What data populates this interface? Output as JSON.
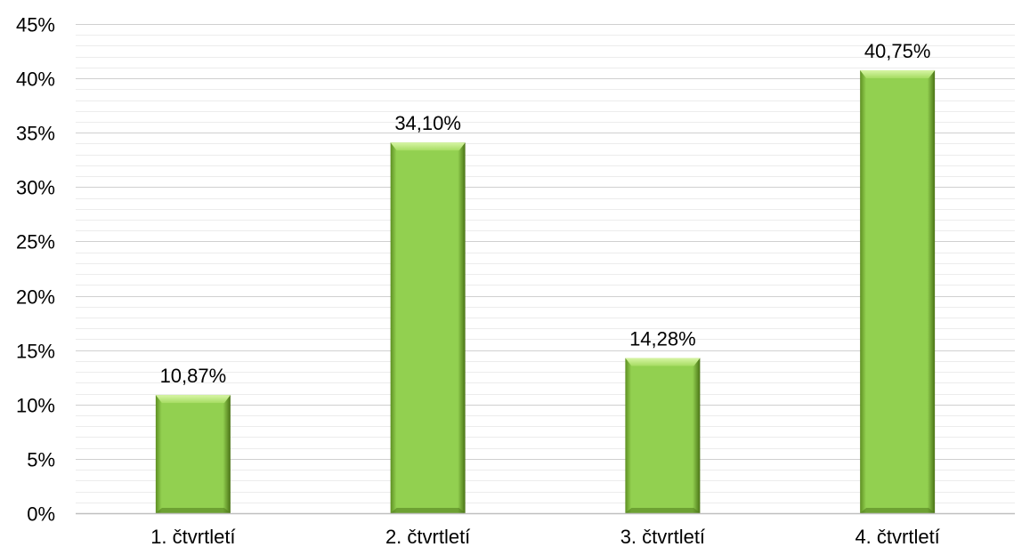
{
  "chart_data": {
    "type": "bar",
    "categories": [
      "1. čtvrtletí",
      "2. čtvrtletí",
      "3. čtvrtletí",
      "4. čtvrtletí"
    ],
    "values": [
      10.87,
      34.1,
      14.28,
      40.75
    ],
    "data_labels": [
      "10,87%",
      "34,10%",
      "14,28%",
      "40,75%"
    ],
    "y_ticks": [
      "0%",
      "5%",
      "10%",
      "15%",
      "20%",
      "25%",
      "30%",
      "35%",
      "40%",
      "45%"
    ],
    "ylim": [
      0,
      45
    ],
    "major_tick_step": 5,
    "minor_tick_step": 1,
    "grid": true,
    "legend": "none",
    "title": "",
    "xlabel": "",
    "ylabel": "",
    "colors": {
      "bar_fill": "#92d050",
      "bar_highlight": "#c4ec86",
      "bar_shadow": "#4f7a1c",
      "grid_major": "#d0d0d0",
      "grid_minor": "#ececec",
      "axis": "#bfbfbf"
    }
  }
}
